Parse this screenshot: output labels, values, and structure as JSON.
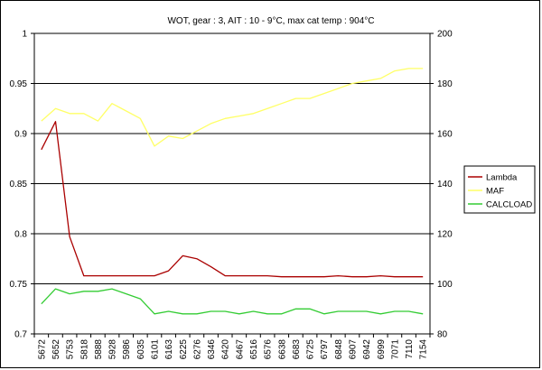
{
  "chart_data": {
    "type": "line",
    "title": "WOT, gear : 3, AIT : 10 - 9°C, max cat temp : 904°C",
    "x": [
      "5672",
      "5652",
      "5753",
      "5818",
      "5888",
      "5928",
      "5986",
      "6035",
      "6101",
      "6163",
      "6225",
      "6276",
      "6346",
      "6420",
      "6467",
      "6516",
      "6576",
      "6638",
      "6683",
      "6725",
      "6797",
      "6848",
      "6907",
      "6942",
      "6999",
      "7071",
      "7110",
      "7154"
    ],
    "y_left": {
      "min": 0.7,
      "max": 1,
      "ticks": [
        "0.7",
        "0.75",
        "0.8",
        "0.85",
        "0.9",
        "0.95",
        "1"
      ]
    },
    "y_right": {
      "min": 80,
      "max": 200,
      "ticks": [
        "80",
        "100",
        "120",
        "140",
        "160",
        "180",
        "200"
      ]
    },
    "grid": "horizontal",
    "legend_position": "right",
    "series": [
      {
        "name": "Lambda",
        "axis": "left",
        "color": "#aa0000",
        "values": [
          0.884,
          0.912,
          0.797,
          0.758,
          0.758,
          0.758,
          0.758,
          0.758,
          0.758,
          0.763,
          0.778,
          0.775,
          0.767,
          0.758,
          0.758,
          0.758,
          0.758,
          0.757,
          0.757,
          0.757,
          0.757,
          0.758,
          0.757,
          0.757,
          0.758,
          0.757,
          0.757,
          0.757
        ]
      },
      {
        "name": "MAF",
        "axis": "right",
        "color": "#ffff66",
        "values": [
          165,
          170,
          168,
          168,
          165,
          172,
          169,
          166,
          155,
          159,
          158,
          161,
          164,
          166,
          167,
          168,
          170,
          172,
          174,
          174,
          176,
          178,
          180,
          181,
          182,
          185,
          186,
          186
        ]
      },
      {
        "name": "CALCLOAD",
        "axis": "right",
        "color": "#33cc33",
        "values": [
          92,
          98,
          96,
          97,
          97,
          98,
          96,
          94,
          88,
          89,
          88,
          88,
          89,
          89,
          88,
          89,
          88,
          88,
          90,
          90,
          88,
          89,
          89,
          89,
          88,
          89,
          89,
          88
        ]
      }
    ]
  }
}
